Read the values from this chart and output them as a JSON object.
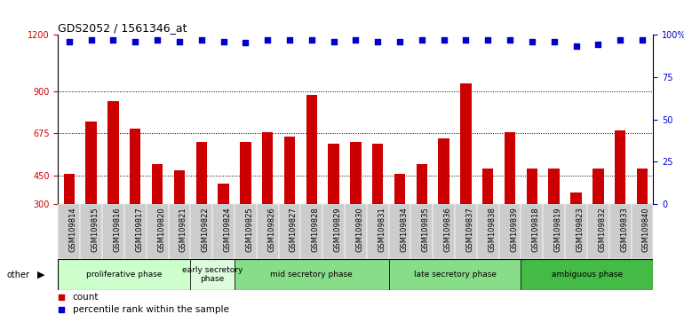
{
  "title": "GDS2052 / 1561346_at",
  "categories": [
    "GSM109814",
    "GSM109815",
    "GSM109816",
    "GSM109817",
    "GSM109820",
    "GSM109821",
    "GSM109822",
    "GSM109824",
    "GSM109825",
    "GSM109826",
    "GSM109827",
    "GSM109828",
    "GSM109829",
    "GSM109830",
    "GSM109831",
    "GSM109834",
    "GSM109835",
    "GSM109836",
    "GSM109837",
    "GSM109838",
    "GSM109839",
    "GSM109818",
    "GSM109819",
    "GSM109823",
    "GSM109832",
    "GSM109833",
    "GSM109840"
  ],
  "bar_values": [
    462,
    740,
    845,
    700,
    510,
    480,
    630,
    410,
    630,
    680,
    660,
    880,
    620,
    630,
    620,
    460,
    510,
    650,
    940,
    490,
    680,
    490,
    490,
    360,
    490,
    690,
    490
  ],
  "percentile_values": [
    96,
    97,
    97,
    96,
    97,
    96,
    97,
    96,
    95,
    97,
    97,
    97,
    96,
    97,
    96,
    96,
    97,
    97,
    97,
    97,
    97,
    96,
    96,
    93,
    94,
    97,
    97
  ],
  "bar_color": "#cc0000",
  "dot_color": "#0000cc",
  "left_ylim": [
    300,
    1200
  ],
  "right_ylim": [
    0,
    100
  ],
  "left_yticks": [
    300,
    450,
    675,
    900,
    1200
  ],
  "right_yticks": [
    0,
    25,
    50,
    75,
    100
  ],
  "right_yticklabels": [
    "0",
    "25",
    "50",
    "75",
    "100%"
  ],
  "phases": [
    {
      "label": "proliferative phase",
      "start": 0,
      "end": 6,
      "color": "#ccffcc"
    },
    {
      "label": "early secretory\nphase",
      "start": 6,
      "end": 8,
      "color": "#ddfcdd"
    },
    {
      "label": "mid secretory phase",
      "start": 8,
      "end": 15,
      "color": "#88dd88"
    },
    {
      "label": "late secretory phase",
      "start": 15,
      "end": 21,
      "color": "#88dd88"
    },
    {
      "label": "ambiguous phase",
      "start": 21,
      "end": 27,
      "color": "#44bb44"
    }
  ],
  "grid_lines": [
    450,
    675,
    900
  ],
  "tick_bg_color": "#cccccc",
  "tick_bg_color_alt": "#dddddd"
}
